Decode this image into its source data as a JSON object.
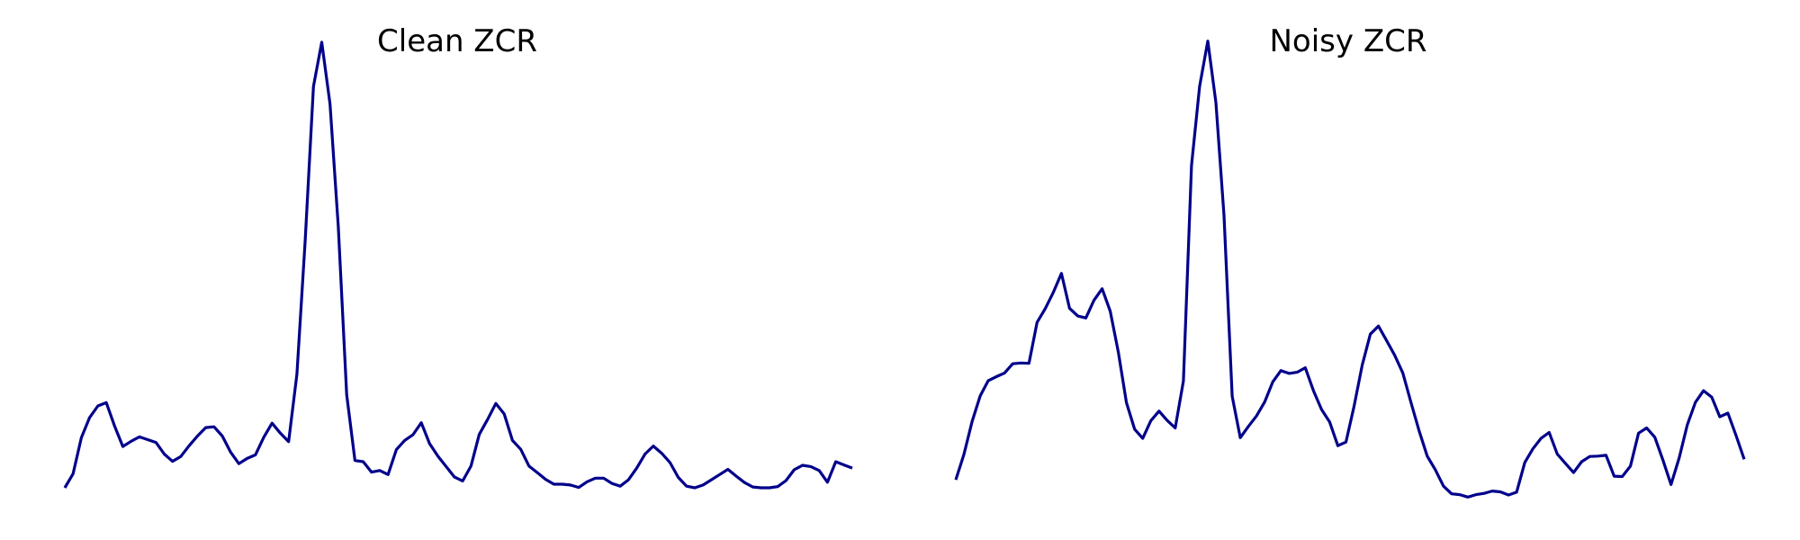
{
  "chart_data": [
    {
      "type": "line",
      "title": "Clean ZCR",
      "xlabel": "",
      "ylabel": "",
      "axes_visible": false,
      "grid": false,
      "ylim": [
        0,
        100
      ],
      "color": "#00008B",
      "values": [
        0.0,
        3.5,
        12.5,
        17.5,
        20.4,
        21.2,
        15.4,
        10.3,
        11.6,
        12.7,
        12.0,
        11.3,
        8.4,
        6.6,
        7.8,
        10.5,
        12.9,
        15.0,
        15.2,
        12.9,
        8.9,
        6.0,
        7.3,
        8.2,
        12.6,
        16.1,
        13.6,
        11.5,
        28.3,
        61.6,
        100.0,
        111.0,
        95.6,
        65.0,
        23.2,
        6.8,
        6.5,
        3.9,
        4.3,
        3.3,
        9.5,
        11.8,
        13.2,
        16.2,
        11.0,
        7.9,
        5.3,
        2.7,
        1.7,
        5.4,
        13.3,
        17.0,
        21.0,
        18.4,
        11.8,
        9.6,
        5.4,
        3.8,
        2.1,
        0.9,
        0.9,
        0.7,
        0.1,
        1.5,
        2.4,
        2.4,
        1.1,
        0.4,
        2.0,
        4.9,
        8.4,
        10.4,
        8.6,
        6.3,
        2.6,
        0.4,
        0.0,
        0.7,
        2.0,
        3.3,
        4.6,
        2.9,
        1.3,
        0.2,
        0.0,
        0.0,
        0.3,
        1.8,
        4.5,
        5.6,
        5.3,
        4.3,
        1.4,
        6.5,
        5.7,
        4.9
      ],
      "x_count": 96
    },
    {
      "type": "line",
      "title": "Noisy ZCR",
      "xlabel": "",
      "ylabel": "",
      "axes_visible": false,
      "grid": false,
      "ylim": [
        0,
        100
      ],
      "color": "#00008B",
      "values": [
        2.0,
        8.3,
        16.5,
        22.9,
        26.7,
        27.7,
        28.6,
        30.9,
        31.1,
        31.0,
        41.2,
        44.6,
        48.7,
        53.4,
        44.7,
        42.8,
        42.3,
        46.7,
        49.6,
        44.0,
        33.8,
        21.2,
        14.6,
        12.3,
        16.7,
        19.1,
        16.8,
        14.9,
        26.6,
        80.3,
        100.0,
        111.3,
        96.0,
        67.9,
        22.8,
        12.5,
        15.3,
        17.9,
        21.4,
        26.4,
        29.2,
        28.5,
        28.8,
        29.9,
        24.2,
        19.5,
        16.4,
        10.5,
        11.4,
        20.3,
        30.5,
        38.3,
        40.3,
        36.7,
        33.0,
        28.6,
        21.3,
        14.2,
        7.9,
        4.5,
        0.4,
        -1.5,
        -1.7,
        -2.3,
        -1.7,
        -1.4,
        -0.8,
        -1.0,
        -1.8,
        -1.1,
        6.3,
        9.7,
        12.3,
        13.8,
        8.4,
        6.1,
        3.8,
        6.5,
        7.8,
        7.9,
        8.1,
        2.9,
        2.8,
        5.4,
        13.6,
        14.9,
        12.6,
        6.9,
        0.8,
        7.5,
        15.7,
        21.3,
        24.2,
        22.6,
        17.7,
        18.6,
        13.0,
        7.1
      ],
      "x_count": 98
    }
  ]
}
